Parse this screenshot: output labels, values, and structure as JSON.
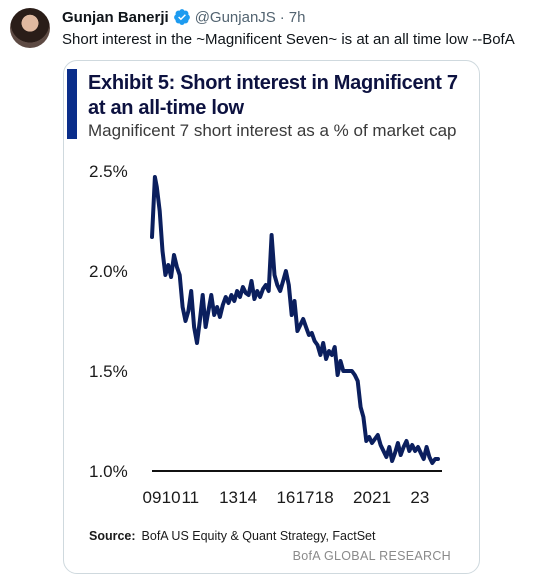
{
  "tweet": {
    "author_name": "Gunjan Banerji",
    "handle": "@GunjanJS",
    "separator": "·",
    "time": "7h",
    "text": "Short interest in the ~Magnificent Seven~ is at an all time low --BofA"
  },
  "exhibit": {
    "title": "Exhibit 5: Short interest in Magnificent 7 at an all-time low",
    "subtitle": "Magnificent 7 short interest as a % of market cap",
    "source_label": "Source:",
    "source_text": "BofA US Equity & Quant Strategy, FactSet",
    "brand": "BofA GLOBAL RESEARCH"
  },
  "colors": {
    "line": "#0b1f5e",
    "accent_bar": "#0a2d8a",
    "axis": "#111111"
  },
  "chart_data": {
    "type": "line",
    "title": "Exhibit 5: Short interest in Magnificent 7 at an all-time low",
    "subtitle": "Magnificent 7 short interest as a % of market cap",
    "xlabel": "",
    "ylabel": "",
    "xlim": [
      2009,
      2024
    ],
    "ylim": [
      1.0,
      2.5
    ],
    "y_ticks": [
      1.0,
      1.5,
      2.0,
      2.5
    ],
    "y_tick_labels": [
      "1.0%",
      "1.5%",
      "2.0%",
      "2.5%"
    ],
    "x_ticks": [
      2009,
      2010,
      2011,
      2013,
      2014,
      2016,
      2017,
      2018,
      2020,
      2021,
      2023
    ],
    "x_tick_labels": [
      "09",
      "10",
      "11",
      "13",
      "14",
      "16",
      "17",
      "18",
      "20",
      "21",
      "23"
    ],
    "grid": false,
    "legend": "none",
    "series": [
      {
        "x": [
          2009.0,
          2009.15,
          2009.25,
          2009.4,
          2009.55,
          2009.7,
          2009.85,
          2010.0,
          2010.15,
          2010.3,
          2010.45,
          2010.6,
          2010.75,
          2010.9,
          2011.05,
          2011.2,
          2011.35,
          2011.5,
          2011.65,
          2011.8,
          2011.95,
          2012.1,
          2012.25,
          2012.4,
          2012.55,
          2012.7,
          2012.85,
          2013.0,
          2013.15,
          2013.3,
          2013.45,
          2013.6,
          2013.75,
          2013.9,
          2014.05,
          2014.2,
          2014.35,
          2014.5,
          2014.65,
          2014.8,
          2014.95,
          2015.1,
          2015.25,
          2015.4,
          2015.55,
          2015.7,
          2015.85,
          2016.0,
          2016.15,
          2016.3,
          2016.45,
          2016.6,
          2016.75,
          2016.9,
          2017.05,
          2017.2,
          2017.35,
          2017.5,
          2017.65,
          2017.8,
          2017.95,
          2018.1,
          2018.25,
          2018.4,
          2018.55,
          2018.7,
          2018.85,
          2019.0,
          2019.15,
          2019.3,
          2019.45,
          2019.6,
          2019.75,
          2019.9,
          2020.05,
          2020.2,
          2020.35,
          2020.5,
          2020.65,
          2020.8,
          2020.95,
          2021.1,
          2021.25,
          2021.4,
          2021.55,
          2021.7,
          2021.85,
          2022.0,
          2022.15,
          2022.3,
          2022.45,
          2022.6,
          2022.75,
          2022.9,
          2023.05,
          2023.2,
          2023.35,
          2023.5,
          2023.65,
          2023.8,
          2023.95
        ],
        "values": [
          2.17,
          2.47,
          2.42,
          2.3,
          2.1,
          1.98,
          2.03,
          1.97,
          2.08,
          2.02,
          1.98,
          1.82,
          1.75,
          1.8,
          1.9,
          1.72,
          1.64,
          1.75,
          1.88,
          1.72,
          1.8,
          1.88,
          1.78,
          1.82,
          1.77,
          1.83,
          1.87,
          1.84,
          1.88,
          1.85,
          1.9,
          1.87,
          1.92,
          1.89,
          1.88,
          1.95,
          1.86,
          1.9,
          1.87,
          1.91,
          1.93,
          1.9,
          2.18,
          1.98,
          1.93,
          1.9,
          1.95,
          2.0,
          1.93,
          1.78,
          1.85,
          1.7,
          1.73,
          1.76,
          1.72,
          1.68,
          1.69,
          1.65,
          1.63,
          1.58,
          1.64,
          1.56,
          1.6,
          1.58,
          1.62,
          1.48,
          1.55,
          1.5,
          1.5,
          1.5,
          1.5,
          1.48,
          1.45,
          1.32,
          1.27,
          1.15,
          1.17,
          1.14,
          1.16,
          1.18,
          1.13,
          1.1,
          1.07,
          1.12,
          1.05,
          1.09,
          1.14,
          1.08,
          1.12,
          1.15,
          1.1,
          1.13,
          1.1,
          1.12,
          1.09,
          1.06,
          1.12,
          1.07,
          1.04,
          1.06,
          1.06
        ]
      }
    ]
  }
}
